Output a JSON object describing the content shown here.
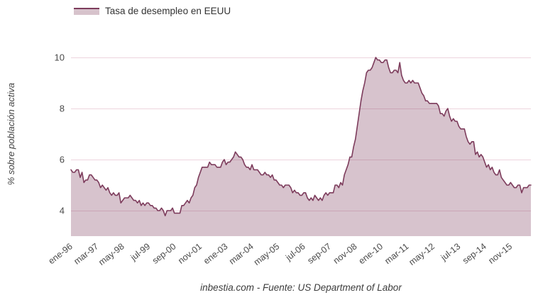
{
  "legend": {
    "label": "Tasa de desempleo en EEUU"
  },
  "y_axis": {
    "title": "% sobre población activa"
  },
  "footer": {
    "text": "inbestia.com - Fuente: US Department of Labor"
  },
  "colors": {
    "line": "#7d3c5c",
    "fill": "rgba(125,60,92,0.31)",
    "fill_solid": "#d7c3cc",
    "grid": "#edd4de",
    "tick_text": "#4a4a4a",
    "legend_text": "#333333"
  },
  "chart_data": {
    "type": "area",
    "title": "Tasa de desempleo en EEUU",
    "xlabel": "",
    "ylabel": "% sobre población activa",
    "legend_position": "top-left",
    "grid": "horizontal",
    "ylim": [
      3,
      10.5
    ],
    "y_ticks": [
      4,
      6,
      8,
      10
    ],
    "x_tick_labels": [
      "ene-96",
      "mar-97",
      "may-98",
      "jul-99",
      "sep-00",
      "nov-01",
      "ene-03",
      "mar-04",
      "may-05",
      "jul-06",
      "sep-07",
      "nov-08",
      "ene-10",
      "mar-11",
      "may-12",
      "jul-13",
      "sep-14",
      "nov-15"
    ],
    "x_tick_interval_points": 14,
    "x_monthly_from": "ene-96",
    "values": [
      5.6,
      5.5,
      5.5,
      5.6,
      5.6,
      5.3,
      5.5,
      5.1,
      5.2,
      5.2,
      5.4,
      5.4,
      5.3,
      5.2,
      5.2,
      5.1,
      4.9,
      5.0,
      4.9,
      4.8,
      4.9,
      4.7,
      4.6,
      4.7,
      4.6,
      4.6,
      4.7,
      4.3,
      4.4,
      4.5,
      4.5,
      4.5,
      4.6,
      4.5,
      4.4,
      4.4,
      4.3,
      4.4,
      4.2,
      4.3,
      4.2,
      4.3,
      4.3,
      4.2,
      4.2,
      4.1,
      4.1,
      4.0,
      4.0,
      4.1,
      4.0,
      3.8,
      4.0,
      4.0,
      4.0,
      4.1,
      3.9,
      3.9,
      3.9,
      3.9,
      4.2,
      4.2,
      4.3,
      4.4,
      4.3,
      4.5,
      4.6,
      4.9,
      5.0,
      5.3,
      5.5,
      5.7,
      5.7,
      5.7,
      5.7,
      5.9,
      5.8,
      5.8,
      5.8,
      5.7,
      5.7,
      5.7,
      5.9,
      6.0,
      5.8,
      5.9,
      5.9,
      6.0,
      6.1,
      6.3,
      6.2,
      6.1,
      6.1,
      6.0,
      5.8,
      5.7,
      5.7,
      5.6,
      5.8,
      5.6,
      5.6,
      5.6,
      5.5,
      5.4,
      5.4,
      5.5,
      5.4,
      5.4,
      5.3,
      5.4,
      5.2,
      5.2,
      5.1,
      5.0,
      5.0,
      4.9,
      5.0,
      5.0,
      5.0,
      4.9,
      4.7,
      4.8,
      4.7,
      4.7,
      4.6,
      4.6,
      4.7,
      4.7,
      4.5,
      4.4,
      4.5,
      4.4,
      4.6,
      4.5,
      4.4,
      4.5,
      4.4,
      4.6,
      4.7,
      4.6,
      4.7,
      4.7,
      4.7,
      5.0,
      5.0,
      4.9,
      5.1,
      5.0,
      5.4,
      5.6,
      5.8,
      6.1,
      6.1,
      6.5,
      6.8,
      7.3,
      7.8,
      8.3,
      8.7,
      9.0,
      9.4,
      9.5,
      9.5,
      9.6,
      9.8,
      10.0,
      9.9,
      9.9,
      9.8,
      9.8,
      9.9,
      9.9,
      9.6,
      9.4,
      9.4,
      9.5,
      9.5,
      9.4,
      9.8,
      9.3,
      9.1,
      9.0,
      9.0,
      9.1,
      9.0,
      9.1,
      9.0,
      9.0,
      9.0,
      8.8,
      8.6,
      8.5,
      8.3,
      8.3,
      8.2,
      8.2,
      8.2,
      8.2,
      8.2,
      8.1,
      7.8,
      7.8,
      7.7,
      7.9,
      8.0,
      7.7,
      7.5,
      7.6,
      7.5,
      7.5,
      7.3,
      7.2,
      7.2,
      7.2,
      6.9,
      6.7,
      6.6,
      6.7,
      6.7,
      6.2,
      6.3,
      6.1,
      6.2,
      6.1,
      5.9,
      5.7,
      5.8,
      5.6,
      5.7,
      5.5,
      5.4,
      5.4,
      5.6,
      5.3,
      5.2,
      5.1,
      5.0,
      5.0,
      5.1,
      5.0,
      4.9,
      4.9,
      5.0,
      5.0,
      4.7,
      4.9,
      4.9,
      4.9,
      5.0,
      5.0
    ]
  }
}
